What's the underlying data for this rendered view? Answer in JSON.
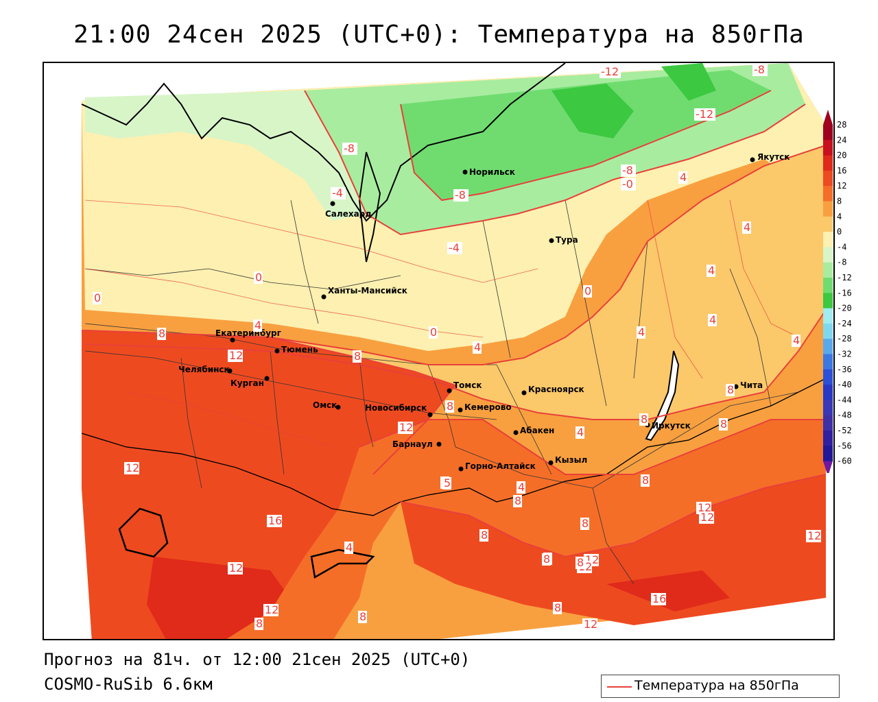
{
  "title": "21:00 24сен 2025 (UTC+0): Температура на 850гПа",
  "footer": {
    "forecast": "Прогноз на 81ч. от 12:00 21сен 2025 (UTC+0)",
    "model": "COSMO-RuSib 6.6км"
  },
  "legend": {
    "label": "Температура на 850гПа",
    "color": "#e8403a"
  },
  "colorbar": {
    "ticks": [
      "28",
      "24",
      "20",
      "16",
      "12",
      "8",
      "4",
      "0",
      "-4",
      "-8",
      "-12",
      "-16",
      "-20",
      "-24",
      "-28",
      "-32",
      "-36",
      "-40",
      "-44",
      "-48",
      "-52",
      "-56",
      "-60"
    ],
    "colors": [
      "#a0001e",
      "#c8101e",
      "#e02a1a",
      "#ee4a20",
      "#f56e28",
      "#f8a040",
      "#fbc86a",
      "#fdf0b0",
      "#d8f5c8",
      "#a8eca0",
      "#70dc70",
      "#3cc840",
      "#a0ecf0",
      "#80d8f0",
      "#5aa8ec",
      "#3c78e4",
      "#2c50d8",
      "#2838c4",
      "#3838b8",
      "#4030a8",
      "#3020a0",
      "#201898",
      "#7018a0"
    ]
  },
  "cities": [
    {
      "name": "Якутск"
    },
    {
      "name": "Норильск"
    },
    {
      "name": "Салехард"
    },
    {
      "name": "Тура"
    },
    {
      "name": "Ханты-Мансийск"
    },
    {
      "name": "Екатеринбург"
    },
    {
      "name": "Тюмень"
    },
    {
      "name": "Челябинск"
    },
    {
      "name": "Курган"
    },
    {
      "name": "Омск"
    },
    {
      "name": "Новосибирск"
    },
    {
      "name": "Томск"
    },
    {
      "name": "Кемерово"
    },
    {
      "name": "Красноярск"
    },
    {
      "name": "Барнаул"
    },
    {
      "name": "Абакен"
    },
    {
      "name": "Горно-Алтайск"
    },
    {
      "name": "Кызыл"
    },
    {
      "name": "Иркутск"
    },
    {
      "name": "Чита"
    }
  ],
  "isotherm_labels": [
    "-12",
    "-8",
    "-12",
    "-8",
    "-8",
    "-0",
    "4",
    "-4",
    "-8",
    "-4",
    "0",
    "0",
    "0",
    "0",
    "4",
    "4",
    "4",
    "4",
    "4",
    "4",
    "8",
    "12",
    "8",
    "4",
    "8",
    "8",
    "4",
    "12",
    "8",
    "8",
    "4",
    "4",
    "8",
    "12",
    "12",
    "12",
    "16",
    "12",
    "12",
    "8",
    "4",
    "8",
    "8",
    "8",
    "12",
    "8",
    "8",
    "8",
    "12",
    "12",
    "12",
    "16",
    "8",
    "5",
    "8"
  ]
}
